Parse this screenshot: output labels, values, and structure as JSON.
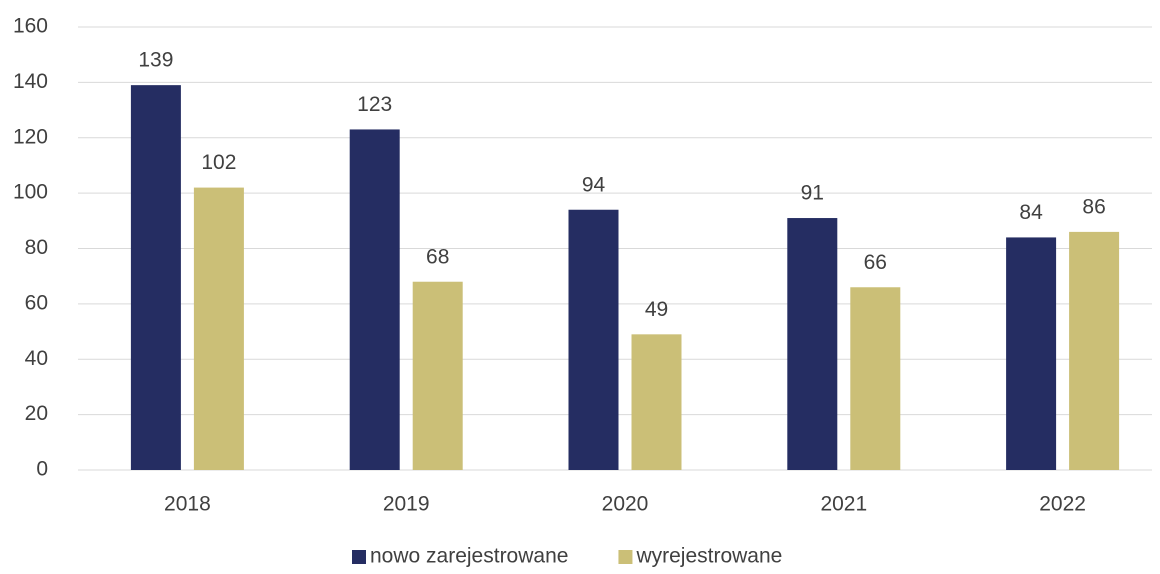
{
  "chart_data": {
    "type": "bar",
    "categories": [
      "2018",
      "2019",
      "2020",
      "2021",
      "2022"
    ],
    "series": [
      {
        "name": "nowo zarejestrowane",
        "color": "#252d62",
        "values": [
          139,
          123,
          94,
          91,
          84
        ]
      },
      {
        "name": "wyrejestrowane",
        "color": "#cbbf77",
        "values": [
          102,
          68,
          49,
          66,
          86
        ]
      }
    ],
    "ylim": [
      0,
      160
    ],
    "yticks": [
      0,
      20,
      40,
      60,
      80,
      100,
      120,
      140,
      160
    ],
    "grid": true,
    "legend": "bottom"
  }
}
